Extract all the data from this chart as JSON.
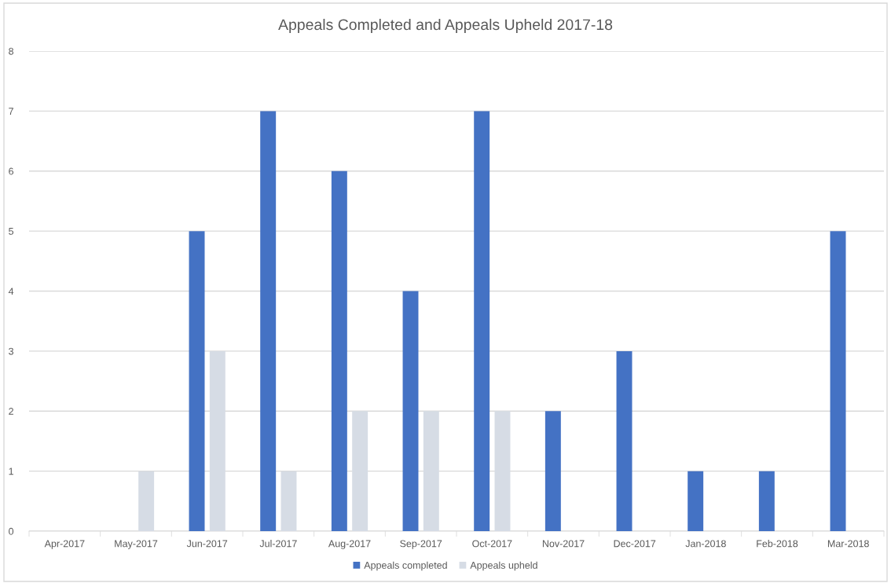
{
  "chart_data": {
    "type": "bar",
    "title": "Appeals Completed and Appeals Upheld 2017-18",
    "categories": [
      "Apr-2017",
      "May-2017",
      "Jun-2017",
      "Jul-2017",
      "Aug-2017",
      "Sep-2017",
      "Oct-2017",
      "Nov-2017",
      "Dec-2017",
      "Jan-2018",
      "Feb-2018",
      "Mar-2018"
    ],
    "series": [
      {
        "name": "Appeals completed",
        "color": "#4472c4",
        "values": [
          0,
          0,
          5,
          7,
          6,
          4,
          7,
          2,
          3,
          1,
          1,
          5
        ]
      },
      {
        "name": "Appeals upheld",
        "color": "#d6dce5",
        "values": [
          0,
          1,
          3,
          1,
          2,
          2,
          2,
          0,
          0,
          0,
          0,
          0
        ]
      }
    ],
    "ylim": [
      0,
      8
    ],
    "yticks": [
      0,
      1,
      2,
      3,
      4,
      5,
      6,
      7,
      8
    ],
    "grid": "y",
    "legend": "bottom"
  }
}
